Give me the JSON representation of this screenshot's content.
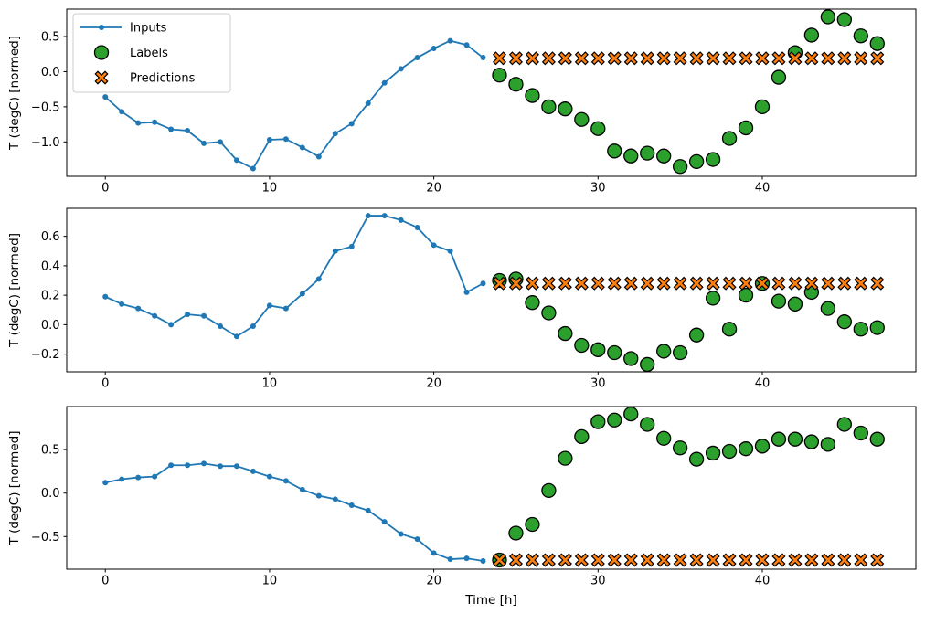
{
  "figure": {
    "background": "#ffffff",
    "xlabel": "Time [h]",
    "ylabel": "T (degC) [normed]"
  },
  "colors": {
    "inputs": "#1f77b4",
    "labels_fill": "#2ca02c",
    "predictions_fill": "#ff7f0e",
    "marker_edge": "#000000",
    "spine": "#000000",
    "legend_border": "#cccccc"
  },
  "chart_data": [
    {
      "type": "line+scatter",
      "title": "",
      "xlabel": "",
      "ylabel": "T (degC) [normed]",
      "xlim": [
        -2.35,
        49.35
      ],
      "ylim": [
        -1.49,
        0.89
      ],
      "grid": false,
      "xticks": [
        {
          "v": 0,
          "label": "0"
        },
        {
          "v": 10,
          "label": "10"
        },
        {
          "v": 20,
          "label": "20"
        },
        {
          "v": 30,
          "label": "30"
        },
        {
          "v": 40,
          "label": "40"
        }
      ],
      "yticks": [
        {
          "v": 0.5,
          "label": "0.5"
        },
        {
          "v": 0.0,
          "label": "0.0"
        },
        {
          "v": -0.5,
          "label": "−0.5"
        },
        {
          "v": -1.0,
          "label": "−1.0"
        }
      ],
      "legend": {
        "position": "upper left",
        "entries": [
          {
            "label": "Inputs",
            "marker": "line",
            "color": "#1f77b4"
          },
          {
            "label": "Labels",
            "marker": "circle",
            "color": "#2ca02c",
            "edge": "#000000"
          },
          {
            "label": "Predictions",
            "marker": "x",
            "color": "#ff7f0e",
            "edge": "#000000"
          }
        ]
      },
      "series": [
        {
          "name": "Inputs",
          "plot": "line",
          "marker": "dot",
          "color": "#1f77b4",
          "x": [
            0,
            1,
            2,
            3,
            4,
            5,
            6,
            7,
            8,
            9,
            10,
            11,
            12,
            13,
            14,
            15,
            16,
            17,
            18,
            19,
            20,
            21,
            22,
            23
          ],
          "y": [
            -0.36,
            -0.57,
            -0.73,
            -0.72,
            -0.82,
            -0.84,
            -1.02,
            -1.0,
            -1.26,
            -1.38,
            -0.97,
            -0.96,
            -1.08,
            -1.21,
            -0.88,
            -0.74,
            -0.45,
            -0.16,
            0.04,
            0.2,
            0.33,
            0.44,
            0.38,
            0.2
          ]
        },
        {
          "name": "Labels",
          "plot": "scatter",
          "marker": "circle",
          "color": "#2ca02c",
          "edge": "#000000",
          "x": [
            24,
            25,
            26,
            27,
            28,
            29,
            30,
            31,
            32,
            33,
            34,
            35,
            36,
            37,
            38,
            39,
            40,
            41,
            42,
            43,
            44,
            45,
            46,
            47
          ],
          "y": [
            -0.05,
            -0.18,
            -0.34,
            -0.5,
            -0.53,
            -0.68,
            -0.81,
            -1.13,
            -1.2,
            -1.16,
            -1.2,
            -1.35,
            -1.28,
            -1.25,
            -0.95,
            -0.8,
            -0.5,
            -0.08,
            0.27,
            0.52,
            0.78,
            0.74,
            0.51,
            0.4
          ]
        },
        {
          "name": "Predictions",
          "plot": "scatter",
          "marker": "X",
          "color": "#ff7f0e",
          "edge": "#000000",
          "x": [
            24,
            25,
            26,
            27,
            28,
            29,
            30,
            31,
            32,
            33,
            34,
            35,
            36,
            37,
            38,
            39,
            40,
            41,
            42,
            43,
            44,
            45,
            46,
            47
          ],
          "y": [
            0.19,
            0.19,
            0.19,
            0.19,
            0.19,
            0.19,
            0.19,
            0.19,
            0.19,
            0.19,
            0.19,
            0.19,
            0.19,
            0.19,
            0.19,
            0.19,
            0.19,
            0.19,
            0.19,
            0.19,
            0.19,
            0.19,
            0.19,
            0.19
          ]
        }
      ]
    },
    {
      "type": "line+scatter",
      "title": "",
      "xlabel": "",
      "ylabel": "T (degC) [normed]",
      "xlim": [
        -2.35,
        49.35
      ],
      "ylim": [
        -0.32,
        0.79
      ],
      "grid": false,
      "xticks": [
        {
          "v": 0,
          "label": "0"
        },
        {
          "v": 10,
          "label": "10"
        },
        {
          "v": 20,
          "label": "20"
        },
        {
          "v": 30,
          "label": "30"
        },
        {
          "v": 40,
          "label": "40"
        }
      ],
      "yticks": [
        {
          "v": 0.6,
          "label": "0.6"
        },
        {
          "v": 0.4,
          "label": "0.4"
        },
        {
          "v": 0.2,
          "label": "0.2"
        },
        {
          "v": 0.0,
          "label": "0.0"
        },
        {
          "v": -0.2,
          "label": "−0.2"
        }
      ],
      "series": [
        {
          "name": "Inputs",
          "plot": "line",
          "marker": "dot",
          "color": "#1f77b4",
          "x": [
            0,
            1,
            2,
            3,
            4,
            5,
            6,
            7,
            8,
            9,
            10,
            11,
            12,
            13,
            14,
            15,
            16,
            17,
            18,
            19,
            20,
            21,
            22,
            23
          ],
          "y": [
            0.19,
            0.14,
            0.11,
            0.06,
            0.0,
            0.07,
            0.06,
            -0.01,
            -0.08,
            -0.01,
            0.13,
            0.11,
            0.21,
            0.31,
            0.5,
            0.53,
            0.74,
            0.74,
            0.71,
            0.66,
            0.54,
            0.5,
            0.22,
            0.28
          ]
        },
        {
          "name": "Labels",
          "plot": "scatter",
          "marker": "circle",
          "color": "#2ca02c",
          "edge": "#000000",
          "x": [
            24,
            25,
            26,
            27,
            28,
            29,
            30,
            31,
            32,
            33,
            34,
            35,
            36,
            37,
            38,
            39,
            40,
            41,
            42,
            43,
            44,
            45,
            46,
            47
          ],
          "y": [
            0.3,
            0.31,
            0.15,
            0.08,
            -0.06,
            -0.14,
            -0.17,
            -0.19,
            -0.23,
            -0.27,
            -0.18,
            -0.19,
            -0.07,
            0.18,
            -0.03,
            0.2,
            0.28,
            0.16,
            0.14,
            0.22,
            0.11,
            0.02,
            -0.03,
            -0.02
          ]
        },
        {
          "name": "Predictions",
          "plot": "scatter",
          "marker": "X",
          "color": "#ff7f0e",
          "edge": "#000000",
          "x": [
            24,
            25,
            26,
            27,
            28,
            29,
            30,
            31,
            32,
            33,
            34,
            35,
            36,
            37,
            38,
            39,
            40,
            41,
            42,
            43,
            44,
            45,
            46,
            47
          ],
          "y": [
            0.28,
            0.28,
            0.28,
            0.28,
            0.28,
            0.28,
            0.28,
            0.28,
            0.28,
            0.28,
            0.28,
            0.28,
            0.28,
            0.28,
            0.28,
            0.28,
            0.28,
            0.28,
            0.28,
            0.28,
            0.28,
            0.28,
            0.28,
            0.28
          ]
        }
      ]
    },
    {
      "type": "line+scatter",
      "title": "",
      "xlabel": "Time [h]",
      "ylabel": "T (degC) [normed]",
      "xlim": [
        -2.35,
        49.35
      ],
      "ylim": [
        -0.875,
        0.995
      ],
      "grid": false,
      "xticks": [
        {
          "v": 0,
          "label": "0"
        },
        {
          "v": 10,
          "label": "10"
        },
        {
          "v": 20,
          "label": "20"
        },
        {
          "v": 30,
          "label": "30"
        },
        {
          "v": 40,
          "label": "40"
        }
      ],
      "yticks": [
        {
          "v": 0.5,
          "label": "0.5"
        },
        {
          "v": 0.0,
          "label": "0.0"
        },
        {
          "v": -0.5,
          "label": "−0.5"
        }
      ],
      "series": [
        {
          "name": "Inputs",
          "plot": "line",
          "marker": "dot",
          "color": "#1f77b4",
          "x": [
            0,
            1,
            2,
            3,
            4,
            5,
            6,
            7,
            8,
            9,
            10,
            11,
            12,
            13,
            14,
            15,
            16,
            17,
            18,
            19,
            20,
            21,
            22,
            23
          ],
          "y": [
            0.12,
            0.16,
            0.18,
            0.19,
            0.32,
            0.32,
            0.34,
            0.31,
            0.31,
            0.25,
            0.19,
            0.14,
            0.04,
            -0.03,
            -0.07,
            -0.14,
            -0.2,
            -0.33,
            -0.47,
            -0.53,
            -0.69,
            -0.76,
            -0.75,
            -0.78
          ]
        },
        {
          "name": "Labels",
          "plot": "scatter",
          "marker": "circle",
          "color": "#2ca02c",
          "edge": "#000000",
          "x": [
            24,
            25,
            26,
            27,
            28,
            29,
            30,
            31,
            32,
            33,
            34,
            35,
            36,
            37,
            38,
            39,
            40,
            41,
            42,
            43,
            44,
            45,
            46,
            47
          ],
          "y": [
            -0.77,
            -0.46,
            -0.36,
            0.03,
            0.4,
            0.65,
            0.82,
            0.84,
            0.91,
            0.79,
            0.63,
            0.52,
            0.39,
            0.46,
            0.48,
            0.51,
            0.54,
            0.62,
            0.62,
            0.59,
            0.56,
            0.79,
            0.69,
            0.62
          ]
        },
        {
          "name": "Predictions",
          "plot": "scatter",
          "marker": "X",
          "color": "#ff7f0e",
          "edge": "#000000",
          "x": [
            24,
            25,
            26,
            27,
            28,
            29,
            30,
            31,
            32,
            33,
            34,
            35,
            36,
            37,
            38,
            39,
            40,
            41,
            42,
            43,
            44,
            45,
            46,
            47
          ],
          "y": [
            -0.77,
            -0.77,
            -0.77,
            -0.77,
            -0.77,
            -0.77,
            -0.77,
            -0.77,
            -0.77,
            -0.77,
            -0.77,
            -0.77,
            -0.77,
            -0.77,
            -0.77,
            -0.77,
            -0.77,
            -0.77,
            -0.77,
            -0.77,
            -0.77,
            -0.77,
            -0.77,
            -0.77
          ]
        }
      ]
    }
  ]
}
